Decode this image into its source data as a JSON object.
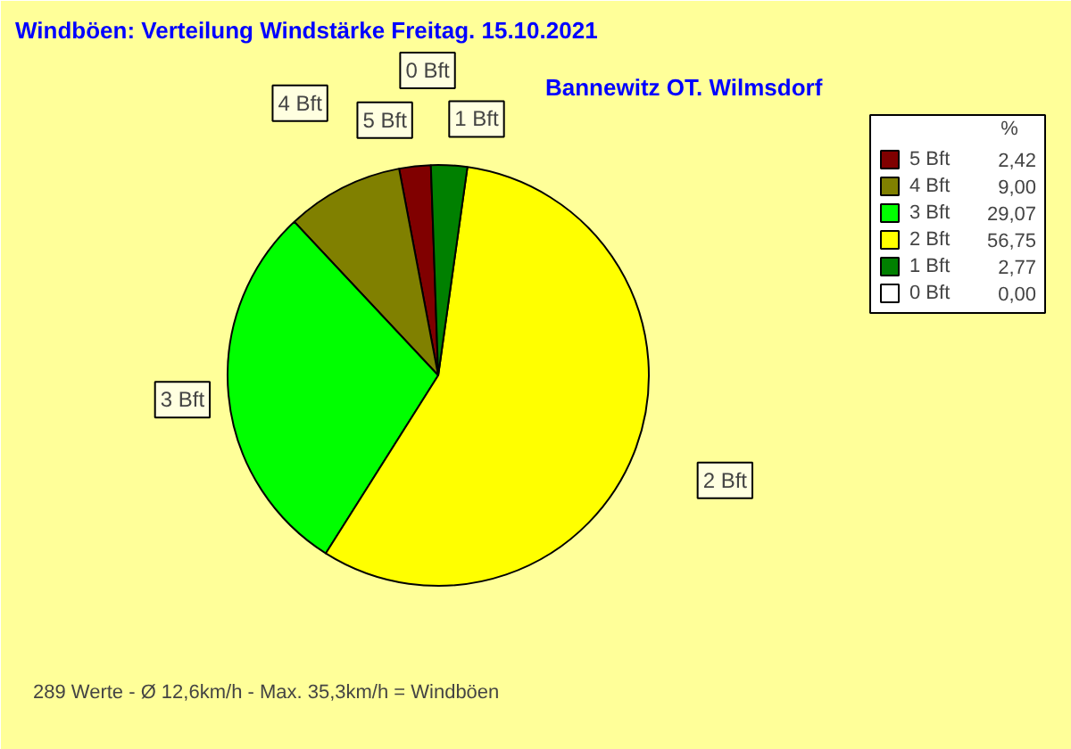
{
  "chart_data": {
    "type": "pie",
    "title": "Windböen: Verteilung Windstärke  Freitag. 15.10.2021",
    "subtitle": "Bannewitz OT. Wilmsdorf",
    "legend_title": "%",
    "categories": [
      "5 Bft",
      "4 Bft",
      "3 Bft",
      "2 Bft",
      "1 Bft",
      "0 Bft"
    ],
    "values": [
      2.42,
      9.0,
      29.07,
      56.75,
      2.77,
      0.0
    ],
    "value_labels": [
      "2,42",
      "9,00",
      "29,07",
      "56,75",
      "2,77",
      "0,00"
    ],
    "colors": [
      "#800000",
      "#808000",
      "#00ff00",
      "#ffff00",
      "#008000",
      "#ffffff"
    ],
    "legend": "top right",
    "annotations": [
      "289 Werte   -   Ø 12,6km/h  -  Max. 35,3km/h = Windböen"
    ]
  }
}
